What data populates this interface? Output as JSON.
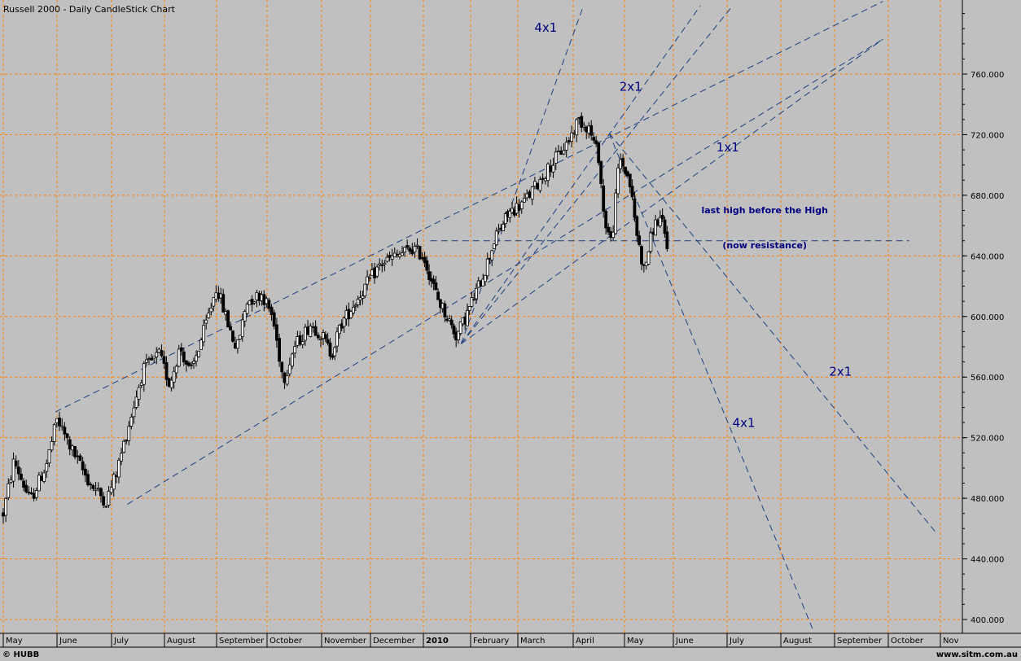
{
  "chart_data": {
    "type": "candlestick",
    "title": "Russell 2000 - Daily CandleStick Chart",
    "x_axis_labels": [
      "May",
      "June",
      "July",
      "August",
      "September",
      "October",
      "November",
      "December",
      "2010",
      "February",
      "March",
      "April",
      "May",
      "June",
      "July",
      "August",
      "September",
      "October",
      "Nov"
    ],
    "y_ticks": [
      "400.000",
      "440.000",
      "480.000",
      "520.000",
      "560.000",
      "600.000",
      "640.000",
      "680.000",
      "720.000",
      "760.000"
    ],
    "ylim": [
      393,
      805
    ],
    "grid": true,
    "price_path": [
      {
        "m": 0.0,
        "v": 470
      },
      {
        "m": 0.2,
        "v": 505
      },
      {
        "m": 0.5,
        "v": 478
      },
      {
        "m": 0.8,
        "v": 502
      },
      {
        "m": 1.0,
        "v": 532
      },
      {
        "m": 1.3,
        "v": 510
      },
      {
        "m": 1.6,
        "v": 490
      },
      {
        "m": 1.9,
        "v": 478
      },
      {
        "m": 2.1,
        "v": 498
      },
      {
        "m": 2.3,
        "v": 525
      },
      {
        "m": 2.6,
        "v": 565
      },
      {
        "m": 2.9,
        "v": 575
      },
      {
        "m": 3.1,
        "v": 555
      },
      {
        "m": 3.3,
        "v": 580
      },
      {
        "m": 3.5,
        "v": 562
      },
      {
        "m": 3.8,
        "v": 595
      },
      {
        "m": 4.0,
        "v": 620
      },
      {
        "m": 4.2,
        "v": 598
      },
      {
        "m": 4.4,
        "v": 578
      },
      {
        "m": 4.6,
        "v": 610
      },
      {
        "m": 4.9,
        "v": 615
      },
      {
        "m": 5.1,
        "v": 600
      },
      {
        "m": 5.3,
        "v": 558
      },
      {
        "m": 5.5,
        "v": 580
      },
      {
        "m": 5.8,
        "v": 595
      },
      {
        "m": 6.0,
        "v": 588
      },
      {
        "m": 6.2,
        "v": 575
      },
      {
        "m": 6.4,
        "v": 595
      },
      {
        "m": 6.8,
        "v": 615
      },
      {
        "m": 7.2,
        "v": 635
      },
      {
        "m": 7.5,
        "v": 640
      },
      {
        "m": 7.8,
        "v": 645
      },
      {
        "m": 8.0,
        "v": 640
      },
      {
        "m": 8.3,
        "v": 612
      },
      {
        "m": 8.5,
        "v": 600
      },
      {
        "m": 8.7,
        "v": 587
      },
      {
        "m": 8.9,
        "v": 600
      },
      {
        "m": 9.1,
        "v": 615
      },
      {
        "m": 9.3,
        "v": 630
      },
      {
        "m": 9.5,
        "v": 650
      },
      {
        "m": 9.8,
        "v": 668
      },
      {
        "m": 10.1,
        "v": 675
      },
      {
        "m": 10.4,
        "v": 690
      },
      {
        "m": 10.7,
        "v": 705
      },
      {
        "m": 10.9,
        "v": 715
      },
      {
        "m": 11.1,
        "v": 730
      },
      {
        "m": 11.3,
        "v": 725
      },
      {
        "m": 11.5,
        "v": 705
      },
      {
        "m": 11.6,
        "v": 665
      },
      {
        "m": 11.75,
        "v": 648
      },
      {
        "m": 11.9,
        "v": 705
      },
      {
        "m": 12.1,
        "v": 690
      },
      {
        "m": 12.25,
        "v": 655
      },
      {
        "m": 12.4,
        "v": 630
      },
      {
        "m": 12.6,
        "v": 660
      },
      {
        "m": 12.75,
        "v": 665
      },
      {
        "m": 12.9,
        "v": 640
      }
    ],
    "annotations": [
      {
        "text": "4x1",
        "m": 10.3,
        "v": 788
      },
      {
        "text": "2x1",
        "m": 11.9,
        "v": 749
      },
      {
        "text": "1x1",
        "m": 13.8,
        "v": 709
      },
      {
        "text": "last high before the High",
        "m": 14.7,
        "v": 668
      },
      {
        "text": "(now resistance)",
        "m": 14.7,
        "v": 645
      },
      {
        "text": "2x1",
        "m": 15.9,
        "v": 561
      },
      {
        "text": "4x1",
        "m": 14.1,
        "v": 527
      }
    ],
    "trendlines": [
      {
        "style": "dashed",
        "from": {
          "m": 0.97,
          "v": 537
        },
        "to": {
          "m": 16.9,
          "v": 808
        }
      },
      {
        "style": "dashed",
        "from": {
          "m": 2.3,
          "v": 476
        },
        "to": {
          "m": 16.9,
          "v": 783
        }
      },
      {
        "style": "dashed",
        "from": {
          "m": 8.8,
          "v": 582
        },
        "to": {
          "m": 16.9,
          "v": 783
        }
      },
      {
        "style": "dashed",
        "from": {
          "m": 8.8,
          "v": 582
        },
        "to": {
          "m": 11.2,
          "v": 805
        }
      },
      {
        "style": "dashed",
        "from": {
          "m": 8.8,
          "v": 582
        },
        "to": {
          "m": 13.5,
          "v": 805
        }
      },
      {
        "style": "dashed",
        "from": {
          "m": 8.8,
          "v": 582
        },
        "to": {
          "m": 14.1,
          "v": 805
        }
      },
      {
        "style": "dashed",
        "from": {
          "m": 8.15,
          "v": 650
        },
        "to": {
          "m": 17.4,
          "v": 650
        }
      },
      {
        "style": "dashed",
        "from": {
          "m": 11.7,
          "v": 721
        },
        "to": {
          "m": 17.9,
          "v": 458
        }
      },
      {
        "style": "dashed",
        "from": {
          "m": 11.7,
          "v": 721
        },
        "to": {
          "m": 15.6,
          "v": 393
        }
      }
    ],
    "colors": {
      "background": "#c0c0c0",
      "grid": "#ff8000",
      "candles": "#000000",
      "annotations": "#000080",
      "trendlines": "#1f3f7f"
    }
  },
  "footer": {
    "left": "© HUBB",
    "right": "www.sitm.com.au"
  }
}
